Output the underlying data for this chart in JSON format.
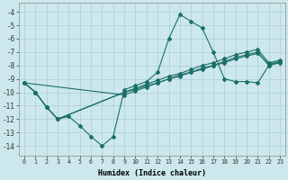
{
  "bg_color": "#cce8ec",
  "grid_color": "#aacdd4",
  "line_color": "#1a6e68",
  "xlabel": "Humidex (Indice chaleur)",
  "xlim": [
    -0.5,
    23.5
  ],
  "ylim": [
    -14.7,
    -3.3
  ],
  "yticks": [
    -14,
    -13,
    -12,
    -11,
    -10,
    -9,
    -8,
    -7,
    -6,
    -5,
    -4
  ],
  "xticks": [
    0,
    1,
    2,
    3,
    4,
    5,
    6,
    7,
    8,
    9,
    10,
    11,
    12,
    13,
    14,
    15,
    16,
    17,
    18,
    19,
    20,
    21,
    22,
    23
  ],
  "lines": [
    {
      "x": [
        0,
        1,
        2,
        3,
        4,
        5,
        6,
        7,
        8,
        9,
        10,
        11,
        12,
        13,
        14,
        15,
        16,
        17,
        18,
        19,
        20,
        21,
        22,
        23
      ],
      "y": [
        -9.3,
        -10.0,
        -11.1,
        -12.0,
        -11.8,
        -12.5,
        -13.3,
        -14.0,
        -13.3,
        -9.8,
        -9.5,
        -9.2,
        -8.5,
        -6.0,
        -4.2,
        -4.7,
        -5.2,
        -7.0,
        -9.0,
        -9.2,
        -9.2,
        -9.3,
        -8.0,
        -7.7
      ]
    },
    {
      "x": [
        0,
        1,
        2,
        3,
        9,
        10,
        11,
        12,
        13,
        14,
        15,
        16,
        17,
        18,
        19,
        20,
        21,
        22,
        23
      ],
      "y": [
        -9.3,
        -10.0,
        -11.1,
        -12.0,
        -10.0,
        -9.7,
        -9.4,
        -9.1,
        -8.8,
        -8.6,
        -8.3,
        -8.0,
        -7.8,
        -7.5,
        -7.2,
        -7.0,
        -6.8,
        -7.8,
        -7.6
      ]
    },
    {
      "x": [
        0,
        1,
        2,
        3,
        9,
        10,
        11,
        12,
        13,
        14,
        15,
        16,
        17,
        18,
        19,
        20,
        21,
        22,
        23
      ],
      "y": [
        -9.3,
        -10.0,
        -11.1,
        -12.0,
        -10.0,
        -9.8,
        -9.5,
        -9.3,
        -9.0,
        -8.7,
        -8.5,
        -8.2,
        -8.0,
        -7.7,
        -7.4,
        -7.2,
        -7.0,
        -8.0,
        -7.8
      ]
    },
    {
      "x": [
        0,
        9,
        10,
        11,
        12,
        13,
        14,
        15,
        16,
        17,
        18,
        19,
        20,
        21,
        22,
        23
      ],
      "y": [
        -9.3,
        -10.2,
        -9.9,
        -9.6,
        -9.3,
        -9.0,
        -8.8,
        -8.5,
        -8.3,
        -8.0,
        -7.8,
        -7.5,
        -7.3,
        -7.1,
        -7.9,
        -7.7
      ]
    }
  ]
}
